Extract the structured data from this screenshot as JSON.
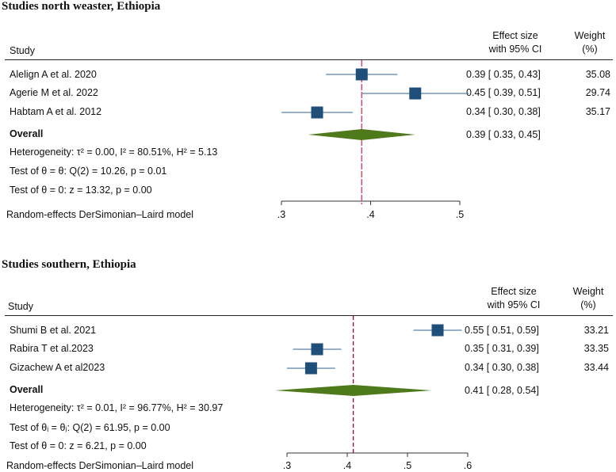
{
  "chart_data": [
    {
      "type": "forest",
      "title": "Studies  north weaster, Ethiopia",
      "header": {
        "study": "Study",
        "effect_line1": "Effect size",
        "effect_line2": "with 95% CI",
        "weight_line1": "Weight",
        "weight_line2": "(%)"
      },
      "studies": [
        {
          "label": "Alelign A et al. 2020",
          "es": 0.39,
          "lo": 0.35,
          "hi": 0.43,
          "ci_text": "0.39 [ 0.35, 0.43]",
          "weight": "35.08"
        },
        {
          "label": "Agerie M et al. 2022",
          "es": 0.45,
          "lo": 0.39,
          "hi": 0.51,
          "ci_text": "0.45 [ 0.39, 0.51]",
          "weight": "29.74"
        },
        {
          "label": "Habtam A et al. 2012",
          "es": 0.34,
          "lo": 0.3,
          "hi": 0.38,
          "ci_text": "0.34 [ 0.30, 0.38]",
          "weight": "35.17"
        }
      ],
      "overall": {
        "label": "Overall",
        "es": 0.39,
        "lo": 0.33,
        "hi": 0.45,
        "ci_text": "0.39 [ 0.33, 0.45]"
      },
      "stats": [
        "Heterogeneity: τ² = 0.00, I² = 80.51%, H² = 5.13",
        "Test of θ = θ: Q(2) = 10.26, p = 0.01",
        "Test of θ = 0: z = 13.32, p = 0.00"
      ],
      "model": "Random-effects DerSimonian–Laird model",
      "ticks": [
        0.3,
        0.4,
        0.5
      ],
      "tick_labels": [
        ".3",
        ".4",
        ".5"
      ],
      "xlim": [
        0.3,
        0.5
      ],
      "colors": {
        "marker": "#1f4e79",
        "ci": "#5b7fa6",
        "diamond": "#4e7a1c",
        "refline": "#e04060"
      }
    },
    {
      "type": "forest",
      "title": "Studies  southern, Ethiopia",
      "header": {
        "study": "Study",
        "effect_line1": "Effect size",
        "effect_line2": "with 95% CI",
        "weight_line1": "Weight",
        "weight_line2": "(%)"
      },
      "studies": [
        {
          "label": "Shumi B  et al. 2021",
          "es": 0.55,
          "lo": 0.51,
          "hi": 0.59,
          "ci_text": "0.55 [ 0.51, 0.59]",
          "weight": "33.21"
        },
        {
          "label": "Rabira T  et al.2023",
          "es": 0.35,
          "lo": 0.31,
          "hi": 0.39,
          "ci_text": "0.35 [ 0.31, 0.39]",
          "weight": "33.35"
        },
        {
          "label": "Gizachew  A  et al2023",
          "es": 0.34,
          "lo": 0.3,
          "hi": 0.38,
          "ci_text": "0.34 [ 0.30, 0.38]",
          "weight": "33.44"
        }
      ],
      "overall": {
        "label": "Overall",
        "es": 0.41,
        "lo": 0.28,
        "hi": 0.54,
        "ci_text": "0.41 [  0.28,  0.54]"
      },
      "stats": [
        "Heterogeneity: τ² = 0.01, I² = 96.77%, H² = 30.97",
        "Test of θᵢ = θⱼ: Q(2) = 61.95, p = 0.00",
        "Test of θ = 0: z = 6.21, p = 0.00"
      ],
      "model": "Random-effects  DerSimonian–Laird  model",
      "ticks": [
        0.3,
        0.4,
        0.5,
        0.6
      ],
      "tick_labels": [
        ".3",
        ".4",
        ".5",
        ".6"
      ],
      "xlim": [
        0.3,
        0.6
      ],
      "colors": {
        "marker": "#1f4e79",
        "ci": "#5b7fa6",
        "diamond": "#4e7a1c",
        "refline": "#a01030"
      }
    }
  ]
}
